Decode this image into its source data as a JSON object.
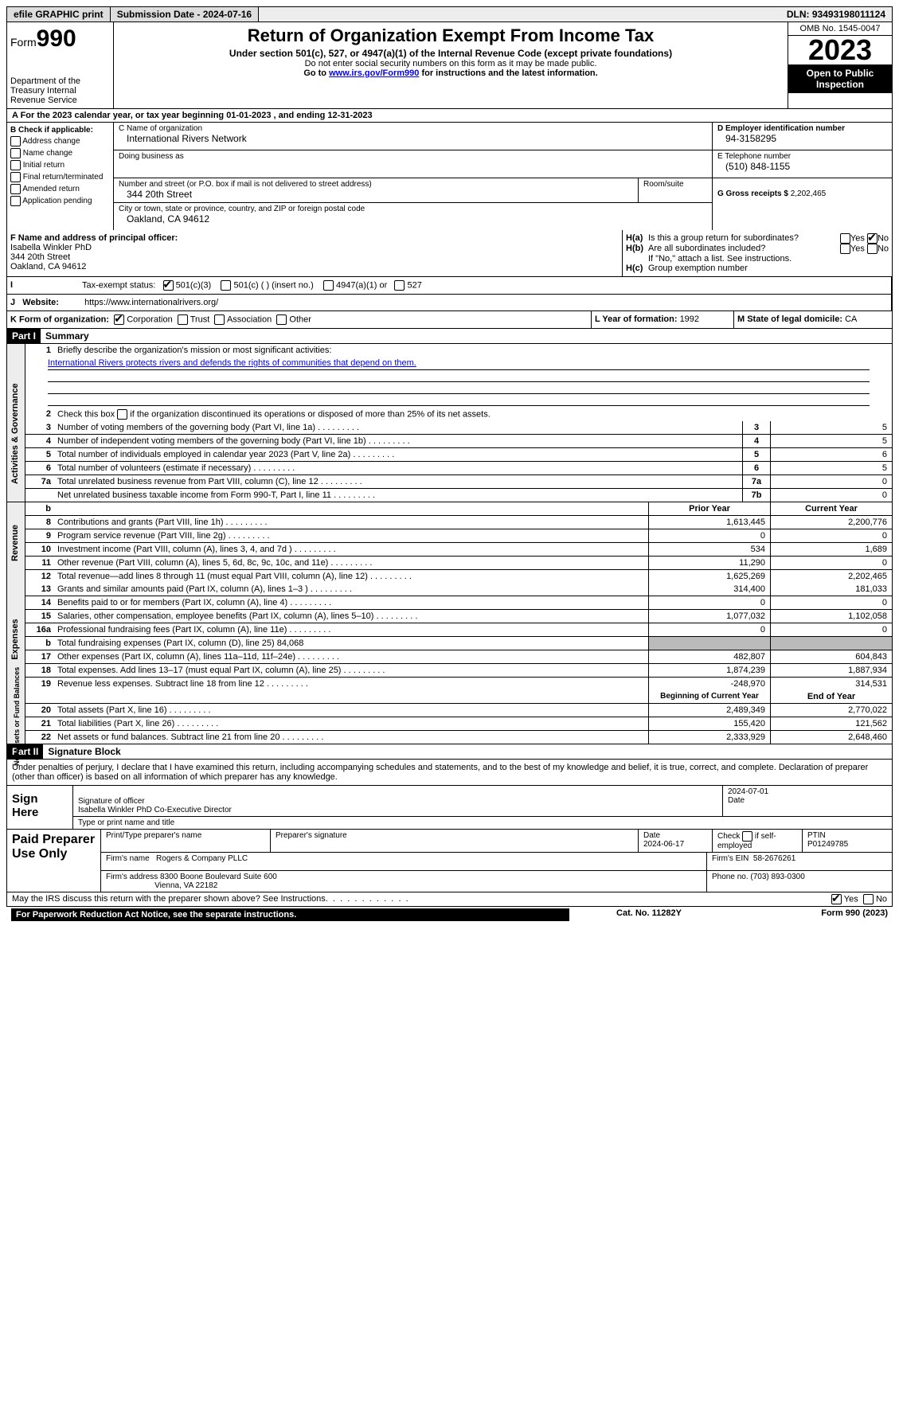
{
  "topbar": {
    "btn1": "efile GRAPHIC print",
    "submission": "Submission Date - 2024-07-16",
    "dln": "DLN: 93493198011124"
  },
  "header": {
    "form_word": "Form",
    "form_num": "990",
    "dept": "Department of the Treasury Internal Revenue Service",
    "title": "Return of Organization Exempt From Income Tax",
    "sub": "Under section 501(c), 527, or 4947(a)(1) of the Internal Revenue Code (except private foundations)",
    "l2": "Do not enter social security numbers on this form as it may be made public.",
    "l3a": "Go to ",
    "l3link": "www.irs.gov/Form990",
    "l3b": " for instructions and the latest information.",
    "omb": "OMB No. 1545-0047",
    "year": "2023",
    "inspect": "Open to Public Inspection"
  },
  "lineA": "A  For the 2023 calendar year, or tax year beginning 01-01-2023    , and ending 12-31-2023",
  "secB": {
    "title": "B Check if applicable:",
    "opts": [
      "Address change",
      "Name change",
      "Initial return",
      "Final return/terminated",
      "Amended return",
      "Application pending"
    ]
  },
  "secC": {
    "name_lbl": "C Name of organization",
    "name": "International Rivers Network",
    "dba_lbl": "Doing business as",
    "addr_lbl": "Number and street (or P.O. box if mail is not delivered to street address)",
    "room_lbl": "Room/suite",
    "addr": "344 20th Street",
    "city_lbl": "City or town, state or province, country, and ZIP or foreign postal code",
    "city": "Oakland, CA  94612"
  },
  "secD": {
    "ein_lbl": "D Employer identification number",
    "ein": "94-3158295",
    "tel_lbl": "E Telephone number",
    "tel": "(510) 848-1155",
    "gross_lbl": "G Gross receipts $ ",
    "gross": "2,202,465"
  },
  "secF": {
    "lbl": "F  Name and address of principal officer:",
    "name": "Isabella Winkler PhD",
    "l1": "344 20th Street",
    "l2": "Oakland, CA  94612"
  },
  "secH": {
    "ha": "Is this a group return for subordinates?",
    "hb": "Are all subordinates included?",
    "hbnote": "If \"No,\" attach a list. See instructions.",
    "hc": "Group exemption number",
    "yes": "Yes",
    "no": "No"
  },
  "secI": {
    "lbl": "Tax-exempt status:",
    "o1": "501(c)(3)",
    "o2": "501(c) (  ) (insert no.)",
    "o3": "4947(a)(1) or",
    "o4": "527"
  },
  "secJ": {
    "lbl": "Website:",
    "val": "https://www.internationalrivers.org/"
  },
  "secK": {
    "lbl": "K Form of organization:",
    "o1": "Corporation",
    "o2": "Trust",
    "o3": "Association",
    "o4": "Other"
  },
  "secL": {
    "lbl": "L Year of formation: ",
    "val": "1992"
  },
  "secM": {
    "lbl": "M State of legal domicile: ",
    "val": "CA"
  },
  "part1": {
    "hdr": "Part I",
    "title": "Summary"
  },
  "s1": {
    "l1": "Briefly describe the organization's mission or most significant activities:",
    "mission": "International Rivers protects rivers and defends the rights of communities that depend on them.",
    "l2": "Check this box        if the organization discontinued its operations or disposed of more than 25% of its net assets.",
    "rows_gov": [
      {
        "n": "3",
        "t": "Number of voting members of the governing body (Part VI, line 1a)",
        "c": "3",
        "v": "5"
      },
      {
        "n": "4",
        "t": "Number of independent voting members of the governing body (Part VI, line 1b)",
        "c": "4",
        "v": "5"
      },
      {
        "n": "5",
        "t": "Total number of individuals employed in calendar year 2023 (Part V, line 2a)",
        "c": "5",
        "v": "6"
      },
      {
        "n": "6",
        "t": "Total number of volunteers (estimate if necessary)",
        "c": "6",
        "v": "5"
      },
      {
        "n": "7a",
        "t": "Total unrelated business revenue from Part VIII, column (C), line 12",
        "c": "7a",
        "v": "0"
      },
      {
        "n": "",
        "t": "Net unrelated business taxable income from Form 990-T, Part I, line 11",
        "c": "7b",
        "v": "0"
      }
    ],
    "hdr_prior": "Prior Year",
    "hdr_curr": "Current Year",
    "rows_rev": [
      {
        "n": "8",
        "t": "Contributions and grants (Part VIII, line 1h)",
        "p": "1,613,445",
        "c": "2,200,776"
      },
      {
        "n": "9",
        "t": "Program service revenue (Part VIII, line 2g)",
        "p": "0",
        "c": "0"
      },
      {
        "n": "10",
        "t": "Investment income (Part VIII, column (A), lines 3, 4, and 7d )",
        "p": "534",
        "c": "1,689"
      },
      {
        "n": "11",
        "t": "Other revenue (Part VIII, column (A), lines 5, 6d, 8c, 9c, 10c, and 11e)",
        "p": "11,290",
        "c": "0"
      },
      {
        "n": "12",
        "t": "Total revenue—add lines 8 through 11 (must equal Part VIII, column (A), line 12)",
        "p": "1,625,269",
        "c": "2,202,465"
      }
    ],
    "rows_exp": [
      {
        "n": "13",
        "t": "Grants and similar amounts paid (Part IX, column (A), lines 1–3 )",
        "p": "314,400",
        "c": "181,033"
      },
      {
        "n": "14",
        "t": "Benefits paid to or for members (Part IX, column (A), line 4)",
        "p": "0",
        "c": "0"
      },
      {
        "n": "15",
        "t": "Salaries, other compensation, employee benefits (Part IX, column (A), lines 5–10)",
        "p": "1,077,032",
        "c": "1,102,058"
      },
      {
        "n": "16a",
        "t": "Professional fundraising fees (Part IX, column (A), line 11e)",
        "p": "0",
        "c": "0"
      },
      {
        "n": "b",
        "t": "Total fundraising expenses (Part IX, column (D), line 25) 84,068",
        "grey": true
      },
      {
        "n": "17",
        "t": "Other expenses (Part IX, column (A), lines 11a–11d, 11f–24e)",
        "p": "482,807",
        "c": "604,843"
      },
      {
        "n": "18",
        "t": "Total expenses. Add lines 13–17 (must equal Part IX, column (A), line 25)",
        "p": "1,874,239",
        "c": "1,887,934"
      },
      {
        "n": "19",
        "t": "Revenue less expenses. Subtract line 18 from line 12",
        "p": "-248,970",
        "c": "314,531"
      }
    ],
    "hdr_begin": "Beginning of Current Year",
    "hdr_end": "End of Year",
    "rows_net": [
      {
        "n": "20",
        "t": "Total assets (Part X, line 16)",
        "p": "2,489,349",
        "c": "2,770,022"
      },
      {
        "n": "21",
        "t": "Total liabilities (Part X, line 26)",
        "p": "155,420",
        "c": "121,562"
      },
      {
        "n": "22",
        "t": "Net assets or fund balances. Subtract line 21 from line 20",
        "p": "2,333,929",
        "c": "2,648,460"
      }
    ]
  },
  "vtabs": {
    "gov": "Activities & Governance",
    "rev": "Revenue",
    "exp": "Expenses",
    "net": "Net Assets or Fund Balances"
  },
  "part2": {
    "hdr": "Part II",
    "title": "Signature Block"
  },
  "sig": {
    "intro": "Under penalties of perjury, I declare that I have examined this return, including accompanying schedules and statements, and to the best of my knowledge and belief, it is true, correct, and complete. Declaration of preparer (other than officer) is based on all information of which preparer has any knowledge.",
    "sign_here": "Sign Here",
    "sig_off": "Signature of officer",
    "date_lbl": "Date",
    "date": "2024-07-01",
    "name": "Isabella Winkler PhD  Co-Executive Director",
    "type_lbl": "Type or print name and title"
  },
  "paid": {
    "lbl": "Paid Preparer Use Only",
    "h_name": "Print/Type preparer's name",
    "h_sig": "Preparer's signature",
    "h_date": "Date",
    "date": "2024-06-17",
    "h_check": "Check         if self-employed",
    "h_ptin": "PTIN",
    "ptin": "P01249785",
    "firm_lbl": "Firm's name",
    "firm": "Rogers & Company PLLC",
    "ein_lbl": "Firm's EIN",
    "ein": "58-2676261",
    "addr_lbl": "Firm's address",
    "addr1": "8300 Boone Boulevard Suite 600",
    "addr2": "Vienna, VA  22182",
    "phone_lbl": "Phone no.",
    "phone": "(703) 893-0300"
  },
  "footer": {
    "discuss": "May the IRS discuss this return with the preparer shown above? See Instructions.",
    "paperwork": "For Paperwork Reduction Act Notice, see the separate instructions.",
    "cat": "Cat. No. 11282Y",
    "form": "Form 990 (2023)",
    "yes": "Yes",
    "no": "No"
  }
}
